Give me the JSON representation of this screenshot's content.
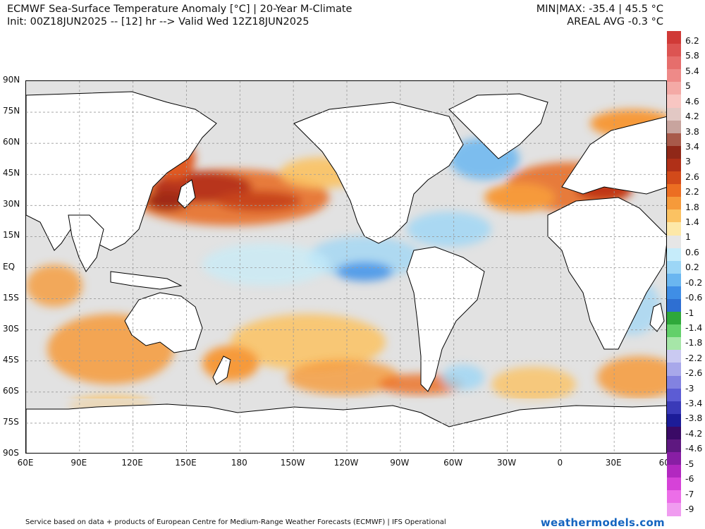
{
  "header": {
    "title_line1": "ECMWF Sea-Surface Temperature Anomaly [°C] | 20-Year M-Climate",
    "title_line2": "Init: 00Z18JUN2025 -- [12] hr --> Valid Wed 12Z18JUN2025",
    "minmax": "MIN|MAX: -35.4 | 45.5 °C",
    "areal_avg": "AREAL AVG -0.3 °C"
  },
  "map": {
    "projection": "Equirectangular",
    "lat_labels": [
      "90N",
      "75N",
      "60N",
      "45N",
      "30N",
      "15N",
      "EQ",
      "15S",
      "30S",
      "45S",
      "60S",
      "75S",
      "90S"
    ],
    "lon_labels": [
      "60E",
      "90E",
      "120E",
      "150E",
      "180",
      "150W",
      "120W",
      "90W",
      "60W",
      "30W",
      "0",
      "30E",
      "60E"
    ],
    "lat_values": [
      90,
      75,
      60,
      45,
      30,
      15,
      0,
      -15,
      -30,
      -45,
      -60,
      -75,
      -90
    ],
    "lon_values": [
      60,
      90,
      120,
      150,
      180,
      210,
      240,
      270,
      300,
      330,
      360,
      390,
      420
    ],
    "colors": {
      "land": "#ffffff",
      "ocean_neutral": "#e2e2e2",
      "grid": "#9a9a9a",
      "coast": "#000000"
    }
  },
  "colorbar": {
    "labels": [
      "6.2",
      "5.8",
      "5.4",
      "5",
      "4.6",
      "4.2",
      "3.8",
      "3.4",
      "3",
      "2.6",
      "2.2",
      "1.8",
      "1.4",
      "1",
      "0.6",
      "0.2",
      "-0.2",
      "-0.6",
      "-1",
      "-1.4",
      "-1.8",
      "-2.2",
      "-2.6",
      "-3",
      "-3.4",
      "-3.8",
      "-4.2",
      "-4.6",
      "-5",
      "-6",
      "-7",
      "-9"
    ],
    "colors": [
      "#d03a37",
      "#dc5452",
      "#e66e6c",
      "#ee8a88",
      "#f4aaa6",
      "#f8c6c2",
      "#e2c8c4",
      "#c8a49e",
      "#a85a4a",
      "#902818",
      "#b03018",
      "#d24a1a",
      "#ec6e22",
      "#f69a3a",
      "#fbc262",
      "#fde8a8",
      "#e6e6e6",
      "#c6ecfa",
      "#9cd6f6",
      "#6ab6f0",
      "#3f8ee6",
      "#2e6fd2",
      "#2ea83a",
      "#62d06a",
      "#a6e6a8",
      "#cacaf2",
      "#a8a8ea",
      "#8282e0",
      "#5c5cd4",
      "#3a3ab8",
      "#1c1c98",
      "#3a0a66",
      "#5e1880",
      "#881ea4",
      "#b228c0",
      "#d642d8",
      "#ec6ee8",
      "#f09cf0"
    ]
  },
  "footer": "Service based on data + products of European Centre for Medium-Range Weather Forecasts (ECMWF) | IFS Operational",
  "brand": "weathermodels.com"
}
